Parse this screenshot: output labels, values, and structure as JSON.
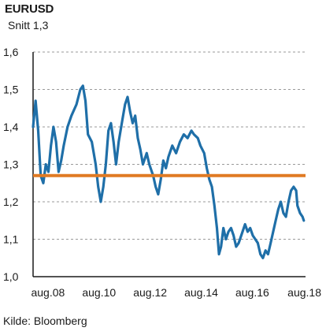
{
  "chart_data": {
    "type": "line",
    "title": "EURUSD",
    "subtitle": "Snitt 1,3",
    "source": "Kilde: Bloomberg",
    "xlim": [
      2008.0,
      2018.667
    ],
    "ylim": [
      1.0,
      1.6
    ],
    "y_ticks": [
      1.0,
      1.1,
      1.2,
      1.3,
      1.4,
      1.5,
      1.6
    ],
    "y_tick_labels": [
      "1,0",
      "1,1",
      "1,2",
      "1,3",
      "1,4",
      "1,5",
      "1,6"
    ],
    "x_ticks": [
      2008.583,
      2010.583,
      2012.583,
      2014.583,
      2016.583,
      2018.583
    ],
    "x_tick_labels": [
      "aug.08",
      "aug.10",
      "aug.12",
      "aug.14",
      "aug.16",
      "aug.18"
    ],
    "grid": "horizontal dashed",
    "reference_line": {
      "label": "Snitt 1,3",
      "value": 1.27,
      "color": "#e07a23"
    },
    "series": [
      {
        "color": "#1f6fa8",
        "points": [
          [
            2008.0,
            1.4
          ],
          [
            2008.1,
            1.47
          ],
          [
            2008.2,
            1.39
          ],
          [
            2008.3,
            1.27
          ],
          [
            2008.4,
            1.25
          ],
          [
            2008.5,
            1.3
          ],
          [
            2008.6,
            1.28
          ],
          [
            2008.7,
            1.35
          ],
          [
            2008.8,
            1.4
          ],
          [
            2008.9,
            1.36
          ],
          [
            2009.0,
            1.28
          ],
          [
            2009.1,
            1.31
          ],
          [
            2009.2,
            1.35
          ],
          [
            2009.35,
            1.4
          ],
          [
            2009.5,
            1.43
          ],
          [
            2009.7,
            1.46
          ],
          [
            2009.85,
            1.5
          ],
          [
            2009.95,
            1.51
          ],
          [
            2010.05,
            1.47
          ],
          [
            2010.15,
            1.38
          ],
          [
            2010.3,
            1.36
          ],
          [
            2010.45,
            1.3
          ],
          [
            2010.55,
            1.24
          ],
          [
            2010.65,
            1.2
          ],
          [
            2010.75,
            1.24
          ],
          [
            2010.85,
            1.3
          ],
          [
            2010.95,
            1.39
          ],
          [
            2011.05,
            1.41
          ],
          [
            2011.15,
            1.36
          ],
          [
            2011.25,
            1.3
          ],
          [
            2011.35,
            1.36
          ],
          [
            2011.5,
            1.42
          ],
          [
            2011.6,
            1.46
          ],
          [
            2011.7,
            1.48
          ],
          [
            2011.8,
            1.44
          ],
          [
            2011.9,
            1.41
          ],
          [
            2012.0,
            1.43
          ],
          [
            2012.1,
            1.37
          ],
          [
            2012.2,
            1.34
          ],
          [
            2012.3,
            1.3
          ],
          [
            2012.45,
            1.33
          ],
          [
            2012.55,
            1.3
          ],
          [
            2012.7,
            1.27
          ],
          [
            2012.8,
            1.24
          ],
          [
            2012.9,
            1.22
          ],
          [
            2013.0,
            1.26
          ],
          [
            2013.1,
            1.31
          ],
          [
            2013.2,
            1.29
          ],
          [
            2013.3,
            1.32
          ],
          [
            2013.45,
            1.35
          ],
          [
            2013.6,
            1.33
          ],
          [
            2013.75,
            1.36
          ],
          [
            2013.9,
            1.38
          ],
          [
            2014.05,
            1.37
          ],
          [
            2014.2,
            1.39
          ],
          [
            2014.3,
            1.38
          ],
          [
            2014.45,
            1.37
          ],
          [
            2014.55,
            1.35
          ],
          [
            2014.7,
            1.33
          ],
          [
            2014.8,
            1.29
          ],
          [
            2014.9,
            1.26
          ],
          [
            2015.0,
            1.24
          ],
          [
            2015.1,
            1.19
          ],
          [
            2015.2,
            1.13
          ],
          [
            2015.28,
            1.06
          ],
          [
            2015.36,
            1.08
          ],
          [
            2015.45,
            1.13
          ],
          [
            2015.55,
            1.1
          ],
          [
            2015.65,
            1.12
          ],
          [
            2015.75,
            1.13
          ],
          [
            2015.85,
            1.11
          ],
          [
            2015.95,
            1.08
          ],
          [
            2016.05,
            1.09
          ],
          [
            2016.15,
            1.11
          ],
          [
            2016.3,
            1.14
          ],
          [
            2016.4,
            1.12
          ],
          [
            2016.5,
            1.13
          ],
          [
            2016.6,
            1.11
          ],
          [
            2016.7,
            1.1
          ],
          [
            2016.8,
            1.09
          ],
          [
            2016.9,
            1.06
          ],
          [
            2017.0,
            1.05
          ],
          [
            2017.1,
            1.07
          ],
          [
            2017.2,
            1.06
          ],
          [
            2017.3,
            1.09
          ],
          [
            2017.4,
            1.12
          ],
          [
            2017.5,
            1.15
          ],
          [
            2017.6,
            1.18
          ],
          [
            2017.7,
            1.2
          ],
          [
            2017.8,
            1.17
          ],
          [
            2017.9,
            1.16
          ],
          [
            2018.0,
            1.2
          ],
          [
            2018.1,
            1.23
          ],
          [
            2018.2,
            1.24
          ],
          [
            2018.3,
            1.23
          ],
          [
            2018.35,
            1.19
          ],
          [
            2018.45,
            1.17
          ],
          [
            2018.55,
            1.16
          ],
          [
            2018.6,
            1.15
          ]
        ]
      }
    ]
  }
}
